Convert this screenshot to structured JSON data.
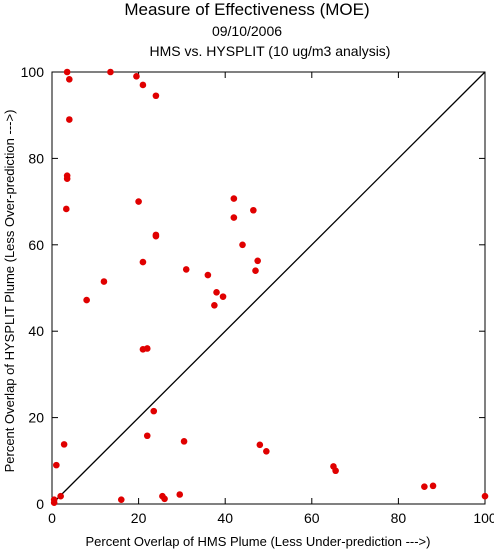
{
  "chart_data": {
    "type": "scatter",
    "title": "Measure of Effectiveness (MOE)",
    "subtitle_date": "09/10/2006",
    "subtitle": "HMS vs. HYSPLIT  (10 ug/m3 analysis)",
    "xlabel": "Percent Overlap of HMS Plume (Less Under-prediction --->)",
    "ylabel": "Percent Overlap of HYSPLIT Plume (Less Over-prediction --->)",
    "xlim": [
      0,
      100
    ],
    "ylim": [
      0,
      100
    ],
    "x_ticks": [
      0,
      20,
      40,
      60,
      80,
      100
    ],
    "y_ticks": [
      0,
      20,
      40,
      60,
      80,
      100
    ],
    "reference_line": "1:1 diagonal",
    "grid": false,
    "marker_color": "#e00000",
    "points": [
      {
        "x": 3.5,
        "y": 100
      },
      {
        "x": 13.5,
        "y": 100
      },
      {
        "x": 4.0,
        "y": 98.3
      },
      {
        "x": 19.5,
        "y": 99.0
      },
      {
        "x": 21.0,
        "y": 97.0
      },
      {
        "x": 24.0,
        "y": 94.5
      },
      {
        "x": 4.0,
        "y": 89.0
      },
      {
        "x": 3.5,
        "y": 76.0
      },
      {
        "x": 3.5,
        "y": 75.3
      },
      {
        "x": 3.3,
        "y": 68.3
      },
      {
        "x": 20.0,
        "y": 70.0
      },
      {
        "x": 42.0,
        "y": 70.7
      },
      {
        "x": 46.5,
        "y": 68.0
      },
      {
        "x": 42.0,
        "y": 66.3
      },
      {
        "x": 24.0,
        "y": 62.0
      },
      {
        "x": 24.0,
        "y": 62.3
      },
      {
        "x": 44.0,
        "y": 60.0
      },
      {
        "x": 21.0,
        "y": 56.0
      },
      {
        "x": 47.5,
        "y": 56.3
      },
      {
        "x": 31.0,
        "y": 54.3
      },
      {
        "x": 36.0,
        "y": 53.0
      },
      {
        "x": 47.0,
        "y": 54.0
      },
      {
        "x": 12.0,
        "y": 51.5
      },
      {
        "x": 38.0,
        "y": 49.0
      },
      {
        "x": 39.5,
        "y": 48.0
      },
      {
        "x": 8.0,
        "y": 47.2
      },
      {
        "x": 37.5,
        "y": 46.0
      },
      {
        "x": 21.0,
        "y": 35.8
      },
      {
        "x": 22.0,
        "y": 36.0
      },
      {
        "x": 23.5,
        "y": 21.5
      },
      {
        "x": 22.0,
        "y": 15.8
      },
      {
        "x": 30.5,
        "y": 14.5
      },
      {
        "x": 2.8,
        "y": 13.8
      },
      {
        "x": 48.0,
        "y": 13.7
      },
      {
        "x": 49.5,
        "y": 12.2
      },
      {
        "x": 1.0,
        "y": 9.0
      },
      {
        "x": 65.0,
        "y": 8.7
      },
      {
        "x": 65.5,
        "y": 7.7
      },
      {
        "x": 86.0,
        "y": 4.0
      },
      {
        "x": 88.0,
        "y": 4.2
      },
      {
        "x": 29.5,
        "y": 2.2
      },
      {
        "x": 25.5,
        "y": 1.8
      },
      {
        "x": 26.0,
        "y": 1.2
      },
      {
        "x": 2.0,
        "y": 1.8
      },
      {
        "x": 16.0,
        "y": 1.0
      },
      {
        "x": 100,
        "y": 1.8
      },
      {
        "x": 0.5,
        "y": 1.0
      },
      {
        "x": 0.5,
        "y": 0.3
      }
    ]
  }
}
